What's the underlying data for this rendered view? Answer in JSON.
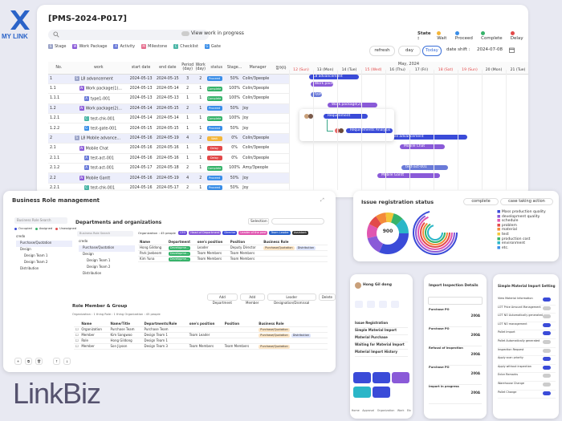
{
  "brand": {
    "name": "MY LINK",
    "footer": "LinkBiz"
  },
  "project": {
    "title": "[PMS-2024-P017]",
    "view_work": "View work in progress"
  },
  "state": {
    "label": "State :",
    "items": [
      {
        "label": "Wait",
        "color": "#f4b63a"
      },
      {
        "label": "Proceed",
        "color": "#3a8ee8"
      },
      {
        "label": "Complete",
        "color": "#36b36a"
      },
      {
        "label": "Delay",
        "color": "#e24a4a"
      }
    ]
  },
  "legend": [
    {
      "label": "Stage",
      "letter": "S",
      "color": "#9aa3c8"
    },
    {
      "label": "Work Package",
      "letter": "W",
      "color": "#8a5ad8"
    },
    {
      "label": "Activity",
      "letter": "A",
      "color": "#6a7ad8"
    },
    {
      "label": "Milestone",
      "letter": "M",
      "color": "#e56a8a"
    },
    {
      "label": "Checklist",
      "letter": "C",
      "color": "#4ab6a6"
    },
    {
      "label": "Gate",
      "letter": "G",
      "color": "#3a8ee8"
    }
  ],
  "controls": {
    "refresh": "refresh",
    "day": "day",
    "today": "Today",
    "date_shift_label": "date shift :",
    "date_shift_value": "2024-07-08"
  },
  "columns": [
    "No.",
    "work",
    "start date",
    "end date",
    "Period (day)",
    "Work (day)",
    "status",
    "Stage...",
    "Manager",
    "참여자"
  ],
  "rows": [
    {
      "no": "1",
      "work": "L8 advancement",
      "type": "S",
      "start": "2024-05-13",
      "end": "2024-05-15",
      "period": "3",
      "wd": "2",
      "status": "Proceed",
      "stage": "50%",
      "manager": "Colin/3people"
    },
    {
      "no": "1.1",
      "work": "Work package(1)...",
      "type": "W",
      "start": "2024-05-13",
      "end": "2024-05-14",
      "period": "2",
      "wd": "1",
      "status": "Complete",
      "stage": "100%",
      "manager": "Colin/3people"
    },
    {
      "no": "1.1.1",
      "work": "type1-001",
      "type": "A",
      "start": "2024-05-13",
      "end": "2024-05-13",
      "period": "1",
      "wd": "1",
      "status": "Complete",
      "stage": "100%",
      "manager": "Colin/3people"
    },
    {
      "no": "1.2",
      "work": "Work package(2)...",
      "type": "W",
      "start": "2024-05-14",
      "end": "2024-05-15",
      "period": "2",
      "wd": "1",
      "status": "Proceed",
      "stage": "50%",
      "manager": "Joy"
    },
    {
      "no": "1.2.1",
      "work": "test-chk-001",
      "type": "C",
      "start": "2024-05-14",
      "end": "2024-05-14",
      "period": "1",
      "wd": "1",
      "status": "Complete",
      "stage": "100%",
      "manager": "Joy"
    },
    {
      "no": "1.2.2",
      "work": "test-gate-001",
      "type": "G",
      "start": "2024-05-15",
      "end": "2024-05-15",
      "period": "1",
      "wd": "1",
      "status": "Proceed",
      "stage": "50%",
      "manager": "Joy"
    },
    {
      "no": "2",
      "work": "L8 Mobile advance...",
      "type": "S",
      "start": "2024-05-16",
      "end": "2024-05-19",
      "period": "4",
      "wd": "2",
      "status": "Wait",
      "stage": "0%",
      "manager": "Colin/3people"
    },
    {
      "no": "2.1",
      "work": "Mobile Chat",
      "type": "W",
      "start": "2024-05-16",
      "end": "2024-05-16",
      "period": "1",
      "wd": "1",
      "status": "Delay",
      "stage": "0%",
      "manager": "Colin/3people"
    },
    {
      "no": "2.1.1",
      "work": "test-act-001",
      "type": "A",
      "start": "2024-05-16",
      "end": "2024-05-16",
      "period": "1",
      "wd": "1",
      "status": "Delay",
      "stage": "0%",
      "manager": "Colin/3people"
    },
    {
      "no": "2.1.2",
      "work": "test-act-001",
      "type": "A",
      "start": "2024-05-17",
      "end": "2024-05-18",
      "period": "2",
      "wd": "1",
      "status": "Complete",
      "stage": "100%",
      "manager": "Amy/3people"
    },
    {
      "no": "2.2",
      "work": "Mobile Gantt",
      "type": "W",
      "start": "2024-05-16",
      "end": "2024-05-19",
      "period": "4",
      "wd": "2",
      "status": "Proceed",
      "stage": "50%",
      "manager": "Joy"
    },
    {
      "no": "2.2.1",
      "work": "test-chk-001",
      "type": "C",
      "start": "2024-05-16",
      "end": "2024-05-17",
      "period": "2",
      "wd": "1",
      "status": "Proceed",
      "stage": "50%",
      "manager": "Joy"
    }
  ],
  "gantt": {
    "month": "May, 2024",
    "days": [
      "12 (Sun)",
      "13 (Mon)",
      "14 (Tue)",
      "15 (Wed)",
      "16 (Thu)",
      "17 (Fri)",
      "18 (Sat)",
      "19 (Sun)",
      "20 (Mon)",
      "21 (Tue)"
    ],
    "bars": [
      "L8 advancement",
      "Work package",
      "type1-001",
      "Work package(2)",
      "Requirement",
      "Requirements Analysis",
      "L8 Mobile advancement",
      "Mobile Chat",
      "test-act-001",
      "Mobile Gantt"
    ]
  },
  "business": {
    "title": "Business Role management",
    "search_label": "Business Role Search",
    "dept_title": "Departments and organizations",
    "selection": "Selection",
    "legend": [
      "Occupied",
      "Assigned",
      "Unassigned"
    ],
    "tree": [
      "credo",
      "Purchase/Quotation",
      "Design",
      "Design Team 1",
      "Design Team 2",
      "Distribution"
    ],
    "org_label": "Organization : 45 people",
    "tags": [
      "CEO",
      "Head of Department",
      "Director",
      "Leader of the post",
      "Team Leader",
      "Assistant"
    ],
    "dept_cols": [
      "Name",
      "Department",
      "one's position",
      "Position",
      "Business Role"
    ],
    "dept_rows": [
      [
        "Hong Gildong",
        "Developme...",
        "Leader",
        "Deputy Director",
        "Purchase/Quotation",
        "Distribution"
      ],
      [
        "Park Jaebeom",
        "Developme...",
        "Team Members",
        "Team Members",
        ""
      ],
      [
        "Kim Yuna",
        "Developme...",
        "Team Members",
        "Team Members",
        ""
      ]
    ],
    "buttons": [
      "Add Department",
      "Add Member",
      "Leader Designation/Dismissal",
      "Delete"
    ],
    "role_title": "Role Member & Group",
    "role_sub": "Organization : 1 thing  Role : 1 thing  Organization : 45 people",
    "role_cols": [
      "Name",
      "Name/Title",
      "Departments/Role",
      "one's position",
      "Position",
      "Business Role"
    ],
    "role_rows": [
      [
        "Organization",
        "Purchase Team",
        "Purchase Team",
        "",
        "",
        "Purchase/Quotation"
      ],
      [
        "Member",
        "Kim Sangwoo",
        "Design Team 1",
        "Team Leader",
        "",
        "Purchase/Quotation",
        "Distribution"
      ],
      [
        "Role",
        "Hong Gildong",
        "Design Team 1",
        "",
        "",
        ""
      ],
      [
        "Member",
        "Son Jiyoon",
        "Design Team 3",
        "Team Members",
        "Team Members",
        "Purchase/Quotation"
      ]
    ]
  },
  "issue": {
    "title": "Issue registration status",
    "complete": "complete",
    "taking": "case taking action",
    "center": "900",
    "items": [
      {
        "label": "Mass production quality",
        "color": "#3a4bd8"
      },
      {
        "label": "development quality",
        "color": "#8a5ad8"
      },
      {
        "label": "schedule",
        "color": "#e056b0"
      },
      {
        "label": "problem",
        "color": "#e24a4a"
      },
      {
        "label": "material",
        "color": "#f48a3a"
      },
      {
        "label": "test",
        "color": "#f4c63a"
      },
      {
        "label": "production cost",
        "color": "#36b36a"
      },
      {
        "label": "environment",
        "color": "#2ab6c8"
      },
      {
        "label": "etc.",
        "color": "#3a8ee8"
      }
    ]
  },
  "phone1": {
    "user": "Hong Gil dong",
    "items": [
      "Issue Registration",
      "Simple Material Import",
      "Material Purchase",
      "Waiting for Material Import",
      "Material Import History"
    ],
    "tabs": [
      "Home",
      "Approval",
      "Organization",
      "Work",
      "Etc"
    ]
  },
  "phone2": {
    "title": "Import Inspection Details",
    "rows": [
      "Purchase PO",
      "Purchase PO",
      "Refusal of Inspection",
      "Purchase PO",
      "Import in progress"
    ],
    "qty": "200A"
  },
  "phone3": {
    "title": "Simple Material Import Setting",
    "items": [
      "View Material Information",
      "LOT Price Amount Management",
      "LOT NO Automatically generated",
      "LOT NO management",
      "Pallet Import",
      "Pallet Automatically generated",
      "Inspection Request",
      "Apply scan priority",
      "Apply without inspection",
      "Enter Remarks",
      "Warehouse Change",
      "Pallet Change"
    ]
  }
}
